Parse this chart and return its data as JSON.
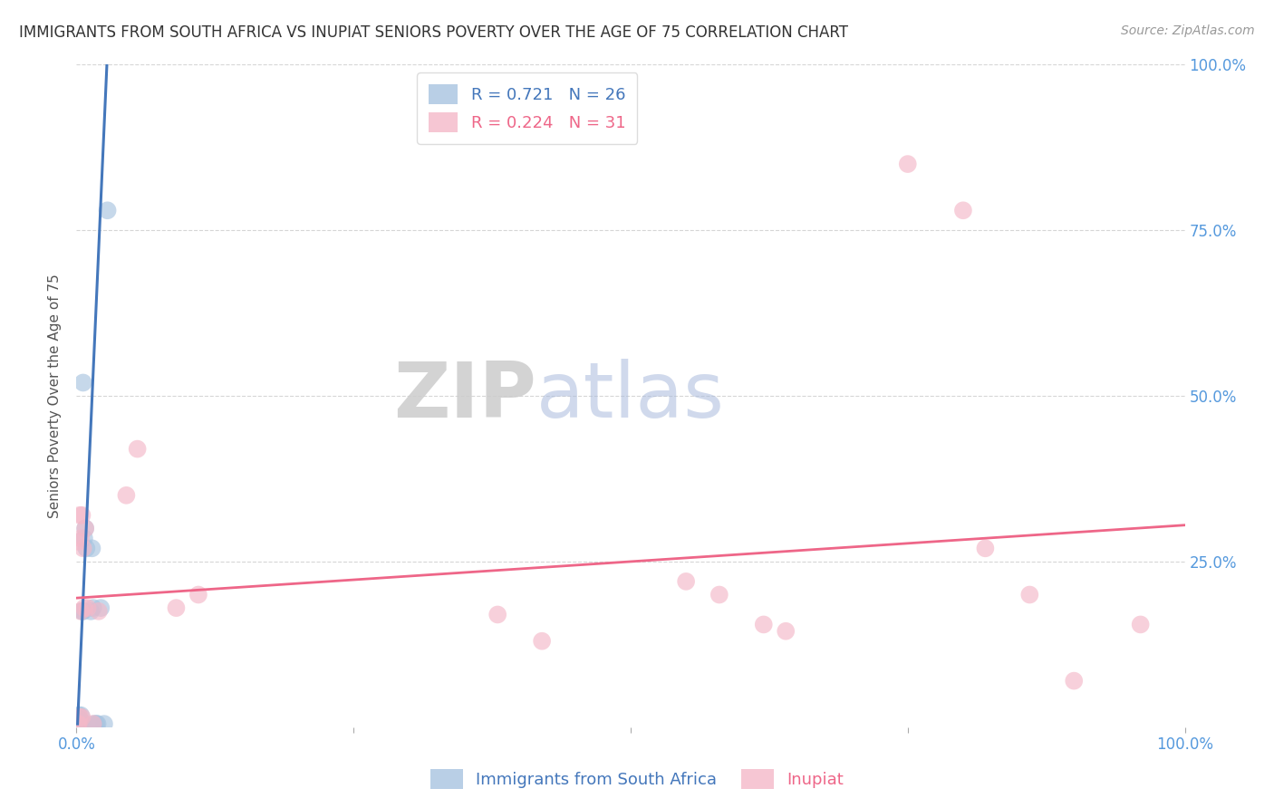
{
  "title": "IMMIGRANTS FROM SOUTH AFRICA VS INUPIAT SENIORS POVERTY OVER THE AGE OF 75 CORRELATION CHART",
  "source": "Source: ZipAtlas.com",
  "ylabel": "Seniors Poverty Over the Age of 75",
  "xlim": [
    0,
    1.0
  ],
  "ylim": [
    0,
    1.0
  ],
  "blue_color": "#a8c4e0",
  "pink_color": "#f4b8c8",
  "blue_line_color": "#4477bb",
  "pink_line_color": "#ee6688",
  "R_blue": 0.721,
  "N_blue": 26,
  "R_pink": 0.224,
  "N_pink": 31,
  "legend_label_blue": "Immigrants from South Africa",
  "legend_label_pink": "Inupiat",
  "watermark_zip": "ZIP",
  "watermark_atlas": "atlas",
  "blue_scatter": [
    [
      0.002,
      0.005
    ],
    [
      0.003,
      0.005
    ],
    [
      0.001,
      0.008
    ],
    [
      0.004,
      0.008
    ],
    [
      0.003,
      0.012
    ],
    [
      0.002,
      0.018
    ],
    [
      0.004,
      0.018
    ],
    [
      0.005,
      0.175
    ],
    [
      0.006,
      0.175
    ],
    [
      0.007,
      0.285
    ],
    [
      0.006,
      0.52
    ],
    [
      0.008,
      0.3
    ],
    [
      0.009,
      0.27
    ],
    [
      0.013,
      0.175
    ],
    [
      0.015,
      0.18
    ],
    [
      0.014,
      0.27
    ],
    [
      0.016,
      0.005
    ],
    [
      0.018,
      0.005
    ],
    [
      0.019,
      0.005
    ],
    [
      0.022,
      0.18
    ],
    [
      0.025,
      0.005
    ],
    [
      0.028,
      0.78
    ],
    [
      0.004,
      0.007
    ],
    [
      0.005,
      0.007
    ],
    [
      0.002,
      0.001
    ],
    [
      0.003,
      0.001
    ]
  ],
  "pink_scatter": [
    [
      0.001,
      0.005
    ],
    [
      0.002,
      0.005
    ],
    [
      0.002,
      0.28
    ],
    [
      0.004,
      0.285
    ],
    [
      0.003,
      0.32
    ],
    [
      0.005,
      0.32
    ],
    [
      0.004,
      0.175
    ],
    [
      0.006,
      0.27
    ],
    [
      0.007,
      0.18
    ],
    [
      0.008,
      0.3
    ],
    [
      0.01,
      0.18
    ],
    [
      0.003,
      0.015
    ],
    [
      0.005,
      0.015
    ],
    [
      0.015,
      0.005
    ],
    [
      0.02,
      0.175
    ],
    [
      0.045,
      0.35
    ],
    [
      0.055,
      0.42
    ],
    [
      0.09,
      0.18
    ],
    [
      0.11,
      0.2
    ],
    [
      0.38,
      0.17
    ],
    [
      0.42,
      0.13
    ],
    [
      0.55,
      0.22
    ],
    [
      0.58,
      0.2
    ],
    [
      0.62,
      0.155
    ],
    [
      0.64,
      0.145
    ],
    [
      0.75,
      0.85
    ],
    [
      0.8,
      0.78
    ],
    [
      0.82,
      0.27
    ],
    [
      0.86,
      0.2
    ],
    [
      0.9,
      0.07
    ],
    [
      0.96,
      0.155
    ]
  ],
  "blue_line_x": [
    0.001,
    0.028
  ],
  "blue_line_y": [
    0.005,
    1.02
  ],
  "pink_line_x": [
    0.0,
    1.0
  ],
  "pink_line_y": [
    0.195,
    0.305
  ],
  "grid_color": "#cccccc",
  "bg_color": "#ffffff",
  "title_color": "#333333",
  "right_tick_color": "#5599dd"
}
